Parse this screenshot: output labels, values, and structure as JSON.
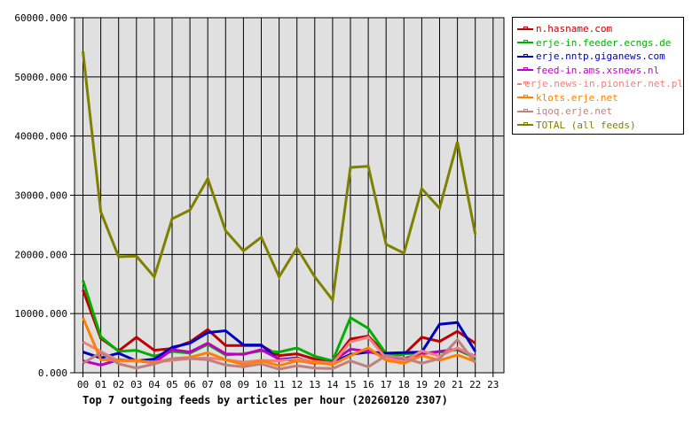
{
  "chart_data": {
    "type": "line",
    "title": "Top 7 outgoing feeds by articles per hour (20260120 2307)",
    "xlabel": "",
    "ylabel": "",
    "ylim": [
      0,
      60000
    ],
    "yticks": [
      "0.000",
      "10000.000",
      "20000.000",
      "30000.000",
      "40000.000",
      "50000.000",
      "60000.000"
    ],
    "x": [
      "00",
      "01",
      "02",
      "03",
      "04",
      "05",
      "06",
      "07",
      "08",
      "09",
      "10",
      "11",
      "12",
      "13",
      "14",
      "15",
      "16",
      "17",
      "18",
      "19",
      "20",
      "21",
      "22",
      "23"
    ],
    "grid": true,
    "legend_position": "right",
    "series": [
      {
        "name": "n.hasname.com",
        "color": "#c00000",
        "values": [
          14000,
          5800,
          3700,
          6000,
          3800,
          4100,
          5200,
          7300,
          4600,
          4600,
          4600,
          2900,
          3200,
          2300,
          1800,
          5700,
          6200,
          3100,
          3100,
          6000,
          5300,
          7000,
          5000
        ]
      },
      {
        "name": "erje-in.feeder.ecngs.de",
        "color": "#00b000",
        "values": [
          15600,
          6100,
          3600,
          3800,
          2800,
          3600,
          3300,
          4800,
          3000,
          3200,
          3700,
          3500,
          4200,
          2800,
          2000,
          9300,
          7500,
          3200,
          3200,
          3300,
          3500,
          3900,
          2500
        ]
      },
      {
        "name": "erje.nntp.giganews.com",
        "color": "#0000c0",
        "values": [
          3500,
          2500,
          3300,
          2000,
          2300,
          4300,
          5000,
          6800,
          7100,
          4700,
          4700,
          2200,
          2500,
          1700,
          1700,
          3100,
          3500,
          3300,
          3400,
          3500,
          8200,
          8500,
          3600
        ]
      },
      {
        "name": "feed-in.ams.xsnews.nl",
        "color": "#c000c0",
        "values": [
          2000,
          1300,
          2200,
          2000,
          1700,
          3900,
          3500,
          5000,
          3200,
          3100,
          3900,
          2300,
          2100,
          1600,
          1900,
          4000,
          3600,
          2800,
          2400,
          3200,
          3600,
          4000,
          2800
        ]
      },
      {
        "name": "erje.news-in.pionier.net.pl",
        "color": "#f08080",
        "values": [
          5200,
          3600,
          2000,
          2000,
          1800,
          2100,
          2400,
          2500,
          2200,
          1800,
          2100,
          2000,
          2400,
          1900,
          1600,
          5200,
          6000,
          2500,
          1900,
          3700,
          2800,
          4200,
          2700
        ]
      },
      {
        "name": "klots.erje.net",
        "color": "#ff8000",
        "values": [
          9300,
          2200,
          2100,
          2100,
          1700,
          2400,
          2600,
          3400,
          2200,
          1400,
          2000,
          1200,
          2000,
          1700,
          1400,
          2900,
          4200,
          2100,
          1600,
          2900,
          2100,
          3000,
          1900
        ]
      },
      {
        "name": "iqoq.erje.net",
        "color": "#c08080",
        "values": [
          1600,
          3400,
          1500,
          800,
          1500,
          2400,
          2400,
          2200,
          1300,
          1000,
          1500,
          600,
          1200,
          800,
          700,
          2000,
          1000,
          2900,
          2500,
          1600,
          2400,
          5600,
          1700
        ]
      },
      {
        "name": "TOTAL (all feeds)",
        "color": "#808000",
        "values": [
          54300,
          27200,
          19600,
          19700,
          16200,
          26000,
          27500,
          32800,
          24000,
          20600,
          22900,
          16200,
          21100,
          16200,
          12300,
          34700,
          34900,
          21700,
          20200,
          31100,
          27800,
          39000,
          23400
        ]
      }
    ]
  },
  "legend": {
    "items": [
      {
        "label": "n.hasname.com",
        "color": "#c00000"
      },
      {
        "label": "erje-in.feeder.ecngs.de",
        "color": "#00b000"
      },
      {
        "label": "erje.nntp.giganews.com",
        "color": "#0000c0"
      },
      {
        "label": "feed-in.ams.xsnews.nl",
        "color": "#c000c0"
      },
      {
        "label": "erje.news-in.pionier.net.pl",
        "color": "#f08080"
      },
      {
        "label": "klots.erje.net",
        "color": "#ff8000"
      },
      {
        "label": "iqoq.erje.net",
        "color": "#c08080"
      },
      {
        "label": "TOTAL (all feeds)",
        "color": "#808000"
      }
    ]
  }
}
